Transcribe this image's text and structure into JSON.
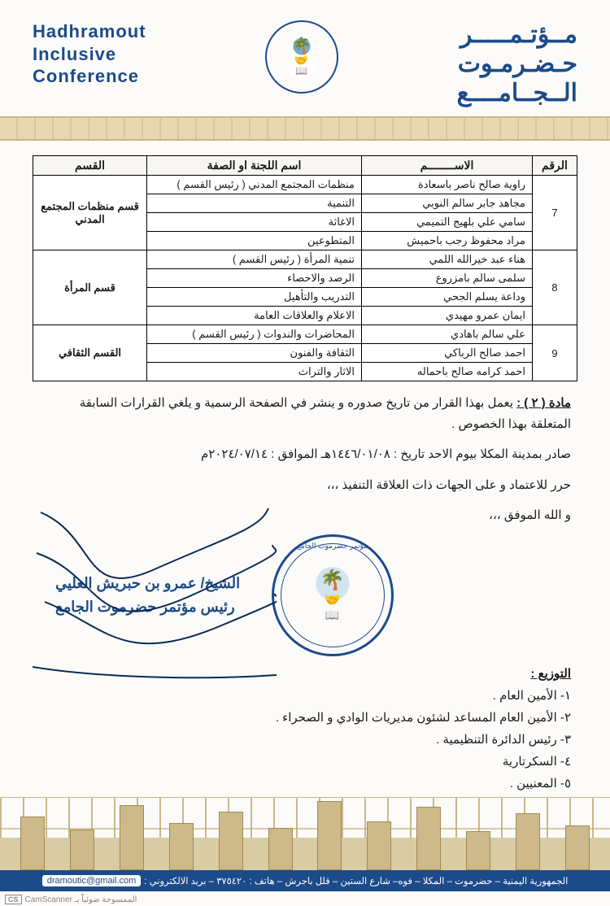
{
  "header": {
    "arabic_title_l1": "مــؤتـمـــــر",
    "arabic_title_l2": "حـضـرمـوت",
    "arabic_title_l3": "الــجــامــــع",
    "english_title_l1": "Hadhramout",
    "english_title_l2": "Inclusive",
    "english_title_l3": "Conference",
    "logo_ring": "مؤتمر حضرموت الجامع"
  },
  "table": {
    "headers": {
      "num": "الرقم",
      "name": "الاســــــــم",
      "committee": "اسم اللجنة او الصفة",
      "section": "القسم"
    },
    "groups": [
      {
        "num": "7",
        "section": "قسم منظمات المجتمع المدني",
        "rows": [
          {
            "name": "راوية صالح ناصر باسعادة",
            "committee": "منظمات المجتمع المدني ( رئيس القسم )"
          },
          {
            "name": "مجاهد جابر سالم النوبي",
            "committee": "التنمية"
          },
          {
            "name": "سامي علي بلهيج التميمي",
            "committee": "الاغاثة"
          },
          {
            "name": "مراد محفوظ رجب باحميش",
            "committee": "المتطوعين"
          }
        ]
      },
      {
        "num": "8",
        "section": "قسم المرأة",
        "rows": [
          {
            "name": "هناء عبد خيرالله اللمي",
            "committee": "تنمية المرأة ( رئيس القسم )"
          },
          {
            "name": "سلمى سالم بامزروع",
            "committee": "الرصد والاحصاء"
          },
          {
            "name": "وداعة يسلم الجحي",
            "committee": "التدريب والتأهيل"
          },
          {
            "name": "ايمان عمرو مهيدي",
            "committee": "الاعلام والعلاقات العامة"
          }
        ]
      },
      {
        "num": "9",
        "section": "القسم الثقافي",
        "rows": [
          {
            "name": "علي سالم باهادي",
            "committee": "المحاضرات والندوات ( رئيس القسم )"
          },
          {
            "name": "احمد صالح الرباكي",
            "committee": "الثقافة والفنون"
          },
          {
            "name": "احمد كرامه صالح باحماله",
            "committee": "الاثار والتراث"
          }
        ]
      }
    ]
  },
  "article": {
    "head": "مادة ( ٢ ) :",
    "text": " يعمل بهذا القرار من تاريخ صدوره و ينشر في الصفحة الرسمية و يلغي القرارات السابقة المتعلقة بهذا الخصوص ."
  },
  "issued": "صادر بمدينة المكلا بيوم الاحد تاريخ : ١٤٤٦/٠١/٠٨هـ الموافق : ٢٠٢٤/٠٧/١٤م",
  "line2": "حرر للاعتماد و على الجهات ذات العلاقة التنفيذ ،،،",
  "line3": "و الله الموفق ،،،",
  "signer_l1": "الشيخ/ عمرو بن حبريش العليي",
  "signer_l2": "رئيس مؤتمر حضرموت الجامع",
  "distribution": {
    "title": "التوزيع :",
    "items": [
      "١- الأمين العام .",
      "٢- الأمين العام المساعد لشئون مديريات الوادي و الصحراء .",
      "٣- رئيس الدائرة التنظيمية .",
      "٤- السكرتارية",
      "٥- المعنيين ."
    ]
  },
  "footer": {
    "address": "الجمهورية اليمنية – حضرموت – المكلا – فوه– شارع الستين – قلل باجرش – هاتف : ٣٧٥٤٢٠ – بريد الالكتروني :",
    "email": "dramoutic@gmail.com"
  },
  "camscan": "CamScanner الممسوحة ضوئياً بـ",
  "colors": {
    "brand_blue": "#1b4b8a",
    "sand": "#e8d7b0",
    "sand_dark": "#c8b688",
    "paper": "#fcfbf9",
    "border": "#000000"
  }
}
